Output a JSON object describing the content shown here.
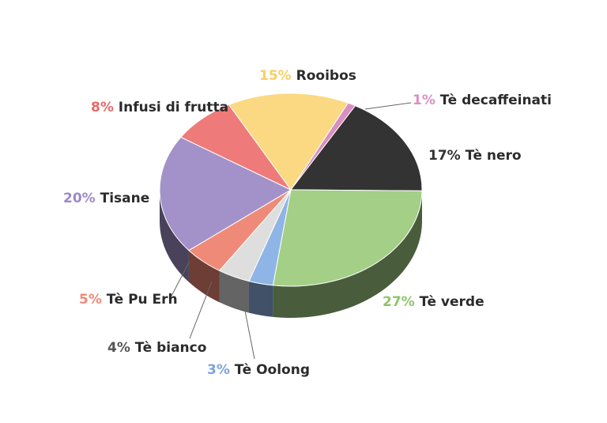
{
  "chart_data": {
    "type": "pie",
    "title": "",
    "slices": [
      {
        "name": "Tè decaffeinati",
        "value": 1,
        "label_pct": "1%",
        "color": "#d98fc2"
      },
      {
        "name": "Tè nero",
        "value": 17,
        "label_pct": "17%",
        "color": "#333333"
      },
      {
        "name": "Tè verde",
        "value": 27,
        "label_pct": "27%",
        "color": "#a3cf86"
      },
      {
        "name": "Tè Oolong",
        "value": 3,
        "label_pct": "3%",
        "color": "#8fb5e6"
      },
      {
        "name": "Tè bianco",
        "value": 4,
        "label_pct": "4%",
        "color": "#dedede"
      },
      {
        "name": "Tè Pu Erh",
        "value": 5,
        "label_pct": "5%",
        "color": "#f08a78"
      },
      {
        "name": "Tisane",
        "value": 20,
        "label_pct": "20%",
        "color": "#a392c9"
      },
      {
        "name": "Infusi di frutta",
        "value": 8,
        "label_pct": "8%",
        "color": "#ee7a7a"
      },
      {
        "name": "Rooibos",
        "value": 15,
        "label_pct": "15%",
        "color": "#fad982"
      }
    ],
    "pct_label_colors": {
      "Tè decaffeinati": "#d98fc2",
      "Tè nero": "#333333",
      "Tè verde": "#8cc56b",
      "Tè Oolong": "#7aa4dc",
      "Tè bianco": "#555555",
      "Tè Pu Erh": "#f08a78",
      "Tisane": "#9c8ac7",
      "Infusi di frutta": "#e86868",
      "Rooibos": "#f7cf63"
    },
    "style": "3d-pie"
  }
}
